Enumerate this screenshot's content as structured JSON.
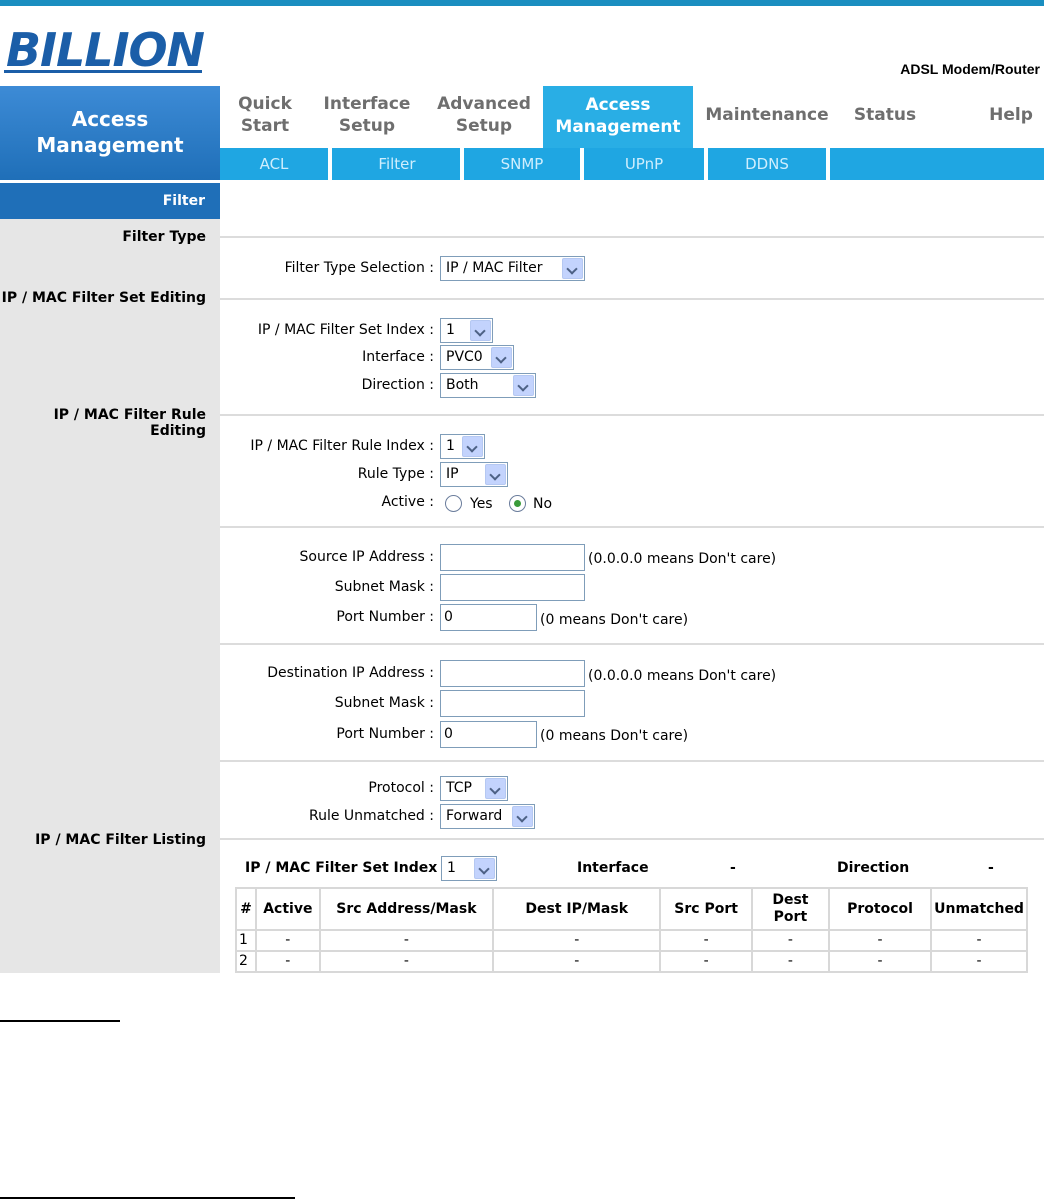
{
  "brand": {
    "logo_text": "BILLION",
    "product": "ADSL Modem/Router"
  },
  "sidebar": {
    "title_line1": "Access",
    "title_line2": "Management",
    "active_item": "Filter",
    "sections": [
      "Filter Type",
      "IP / MAC Filter Set Editing",
      "IP / MAC Filter Rule Editing",
      "IP / MAC Filter Listing"
    ]
  },
  "nav": {
    "tabs": [
      {
        "l1": "Quick",
        "l2": "Start"
      },
      {
        "l1": "Interface",
        "l2": "Setup"
      },
      {
        "l1": "Advanced",
        "l2": "Setup"
      },
      {
        "l1": "Access",
        "l2": "Management"
      },
      {
        "l1": "Maintenance"
      },
      {
        "l1": "Status"
      },
      {
        "l1": "Help"
      }
    ],
    "subtabs": [
      "ACL",
      "Filter",
      "SNMP",
      "UPnP",
      "DDNS"
    ]
  },
  "filter_type": {
    "label": "Filter Type Selection :",
    "value": "IP / MAC Filter"
  },
  "set_edit": {
    "index_label": "IP / MAC Filter Set Index :",
    "index_value": "1",
    "interface_label": "Interface :",
    "interface_value": "PVC0",
    "direction_label": "Direction :",
    "direction_value": "Both"
  },
  "rule_edit": {
    "index_label": "IP / MAC Filter Rule Index :",
    "index_value": "1",
    "type_label": "Rule Type :",
    "type_value": "IP",
    "active_label": "Active :",
    "yes": "Yes",
    "no": "No",
    "active_selected": "No"
  },
  "source": {
    "ip_label": "Source IP Address :",
    "ip_value": "",
    "ip_note": "(0.0.0.0 means Don't care)",
    "mask_label": "Subnet Mask :",
    "mask_value": "",
    "port_label": "Port Number :",
    "port_value": "0",
    "port_note": "(0 means Don't care)"
  },
  "dest": {
    "ip_label": "Destination IP Address :",
    "ip_value": "",
    "ip_note": "(0.0.0.0 means Don't care)",
    "mask_label": "Subnet Mask :",
    "mask_value": "",
    "port_label": "Port Number :",
    "port_value": "0",
    "port_note": "(0 means Don't care)"
  },
  "proto": {
    "protocol_label": "Protocol :",
    "protocol_value": "TCP",
    "unmatched_label": "Rule Unmatched :",
    "unmatched_value": "Forward"
  },
  "listing": {
    "set_index_label": "IP / MAC Filter Set Index",
    "set_index_value": "1",
    "interface_label": "Interface",
    "interface_value": "-",
    "direction_label": "Direction",
    "direction_value": "-",
    "columns": [
      "#",
      "Active",
      "Src Address/Mask",
      "Dest IP/Mask",
      "Src Port",
      "Dest Port",
      "Protocol",
      "Unmatched"
    ],
    "rows": [
      [
        "1",
        "-",
        "-",
        "-",
        "-",
        "-",
        "-",
        "-"
      ],
      [
        "2",
        "-",
        "-",
        "-",
        "-",
        "-",
        "-",
        "-"
      ]
    ]
  }
}
